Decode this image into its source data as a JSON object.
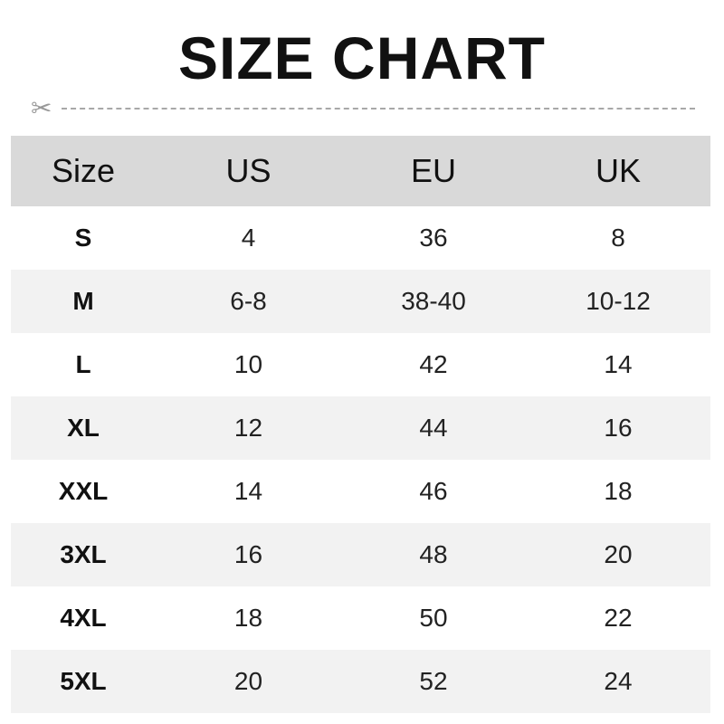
{
  "title": "SIZE CHART",
  "icons": {
    "cut_line": "scissors-icon"
  },
  "table": {
    "headers": [
      "Size",
      "US",
      "EU",
      "UK"
    ],
    "rows": [
      [
        "S",
        "4",
        "36",
        "8"
      ],
      [
        "M",
        "6-8",
        "38-40",
        "10-12"
      ],
      [
        "L",
        "10",
        "42",
        "14"
      ],
      [
        "XL",
        "12",
        "44",
        "16"
      ],
      [
        "XXL",
        "14",
        "46",
        "18"
      ],
      [
        "3XL",
        "16",
        "48",
        "20"
      ],
      [
        "4XL",
        "18",
        "50",
        "22"
      ],
      [
        "5XL",
        "20",
        "52",
        "24"
      ]
    ]
  },
  "colors": {
    "header_bg": "#d9d9d9",
    "alt_row_bg": "#f2f2f2"
  }
}
